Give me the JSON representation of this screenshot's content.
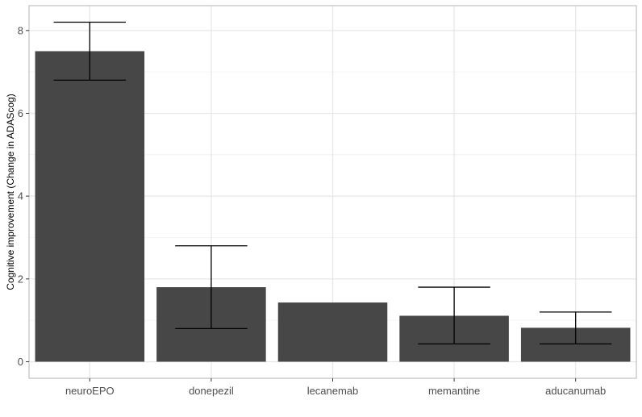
{
  "chart_data": {
    "type": "bar",
    "title": "",
    "xlabel": "",
    "ylabel": "Cognitive improvement (Change in ADAScog)",
    "categories": [
      "neuroEPO",
      "donepezil",
      "lecanemab",
      "memantine",
      "aducanumab"
    ],
    "values": [
      7.5,
      1.8,
      1.43,
      1.11,
      0.82
    ],
    "error_low": [
      6.8,
      0.8,
      null,
      0.43,
      0.43
    ],
    "error_high": [
      8.2,
      2.8,
      null,
      1.8,
      1.2
    ],
    "ylim": [
      -0.4,
      8.6
    ],
    "yticks": [
      0,
      2,
      4,
      6,
      8
    ],
    "grid": true,
    "bar_color": "#474747",
    "error_color": "#000000"
  }
}
